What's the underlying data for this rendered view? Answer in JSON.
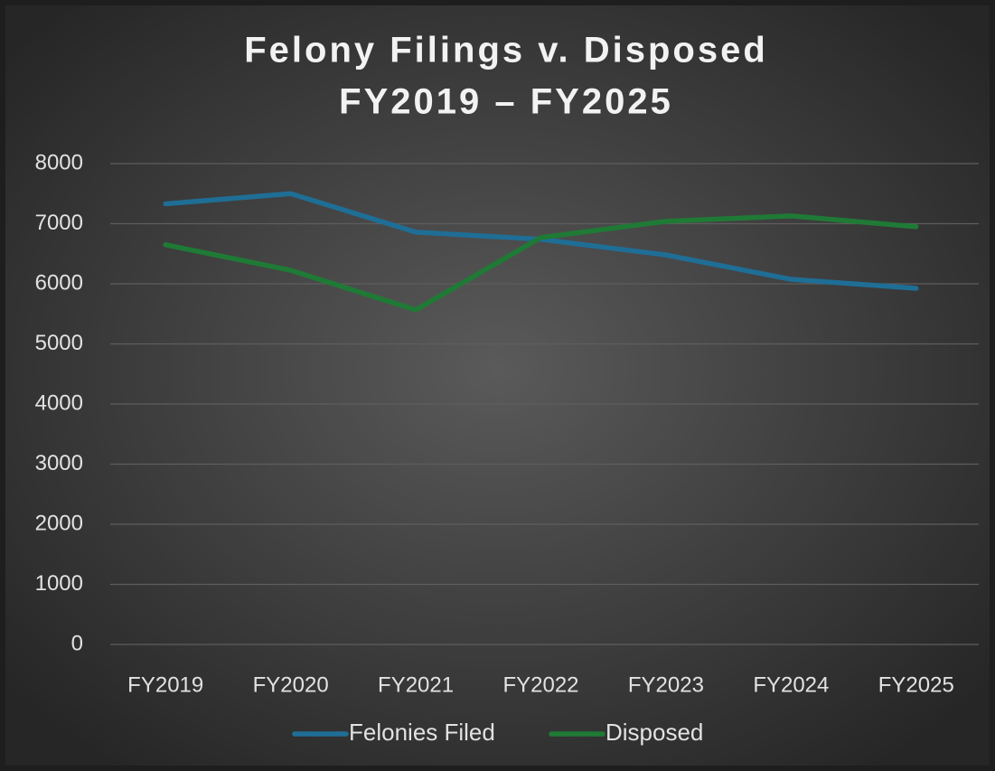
{
  "chart_data": {
    "type": "line",
    "title": "Felony Filings v. Disposed",
    "subtitle": "FY2019 – FY2025",
    "categories": [
      "FY2019",
      "FY2020",
      "FY2021",
      "FY2022",
      "FY2023",
      "FY2024",
      "FY2025"
    ],
    "series": [
      {
        "name": "Felonies Filed",
        "color": "#1f6e96",
        "values": [
          7330,
          7500,
          6860,
          6740,
          6480,
          6075,
          5925
        ]
      },
      {
        "name": "Disposed",
        "color": "#1f7a35",
        "values": [
          6650,
          6225,
          5565,
          6770,
          7040,
          7130,
          6950
        ]
      }
    ],
    "ylim": [
      0,
      8000
    ],
    "yticks": [
      0,
      1000,
      2000,
      3000,
      4000,
      5000,
      6000,
      7000,
      8000
    ],
    "grid": true,
    "legend": "bottom"
  }
}
